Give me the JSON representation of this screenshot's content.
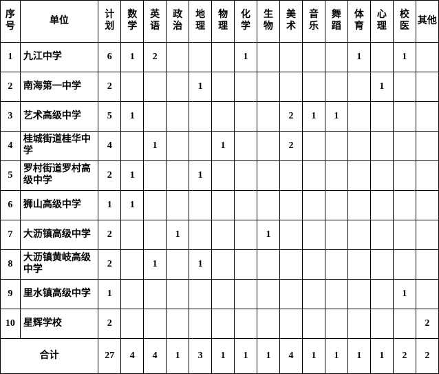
{
  "columns": [
    "序号",
    "单位",
    "计划",
    "数学",
    "英语",
    "政治",
    "地理",
    "物理",
    "化学",
    "生物",
    "美术",
    "音乐",
    "舞蹈",
    "体育",
    "心理",
    "校医",
    "其他"
  ],
  "rows": [
    {
      "idx": "1",
      "unit": "九江中学",
      "cells": [
        "6",
        "1",
        "2",
        "",
        "",
        "",
        "1",
        "",
        "",
        "",
        "",
        "1",
        "",
        "1",
        ""
      ]
    },
    {
      "idx": "2",
      "unit": "南海第一中学",
      "cells": [
        "2",
        "",
        "",
        "",
        "1",
        "",
        "",
        "",
        "",
        "",
        "",
        "",
        "1",
        "",
        ""
      ]
    },
    {
      "idx": "3",
      "unit": "艺术高级中学",
      "cells": [
        "5",
        "1",
        "",
        "",
        "",
        "",
        "",
        "",
        "2",
        "1",
        "1",
        "",
        "",
        "",
        ""
      ]
    },
    {
      "idx": "4",
      "unit": "桂城街道桂华中学",
      "cells": [
        "4",
        "",
        "1",
        "",
        "",
        "1",
        "",
        "",
        "2",
        "",
        "",
        "",
        "",
        "",
        ""
      ]
    },
    {
      "idx": "5",
      "unit": "罗村街道罗村高级中学",
      "cells": [
        "2",
        "1",
        "",
        "",
        "1",
        "",
        "",
        "",
        "",
        "",
        "",
        "",
        "",
        "",
        ""
      ]
    },
    {
      "idx": "6",
      "unit": "狮山高级中学",
      "cells": [
        "1",
        "1",
        "",
        "",
        "",
        "",
        "",
        "",
        "",
        "",
        "",
        "",
        "",
        "",
        ""
      ]
    },
    {
      "idx": "7",
      "unit": "大沥镇高级中学",
      "cells": [
        "2",
        "",
        "",
        "1",
        "",
        "",
        "",
        "1",
        "",
        "",
        "",
        "",
        "",
        "",
        ""
      ]
    },
    {
      "idx": "8",
      "unit": "大沥镇黄岐高级中学",
      "cells": [
        "2",
        "",
        "1",
        "",
        "1",
        "",
        "",
        "",
        "",
        "",
        "",
        "",
        "",
        "",
        ""
      ]
    },
    {
      "idx": "9",
      "unit": "里水镇高级中学",
      "cells": [
        "1",
        "",
        "",
        "",
        "",
        "",
        "",
        "",
        "",
        "",
        "",
        "",
        "",
        "1",
        ""
      ]
    },
    {
      "idx": "10",
      "unit": "星辉学校",
      "cells": [
        "2",
        "",
        "",
        "",
        "",
        "",
        "",
        "",
        "",
        "",
        "",
        "",
        "",
        "",
        "2"
      ]
    }
  ],
  "total_label": "合计",
  "totals": [
    "27",
    "4",
    "4",
    "1",
    "3",
    "1",
    "1",
    "1",
    "4",
    "1",
    "1",
    "1",
    "1",
    "2",
    "2"
  ]
}
